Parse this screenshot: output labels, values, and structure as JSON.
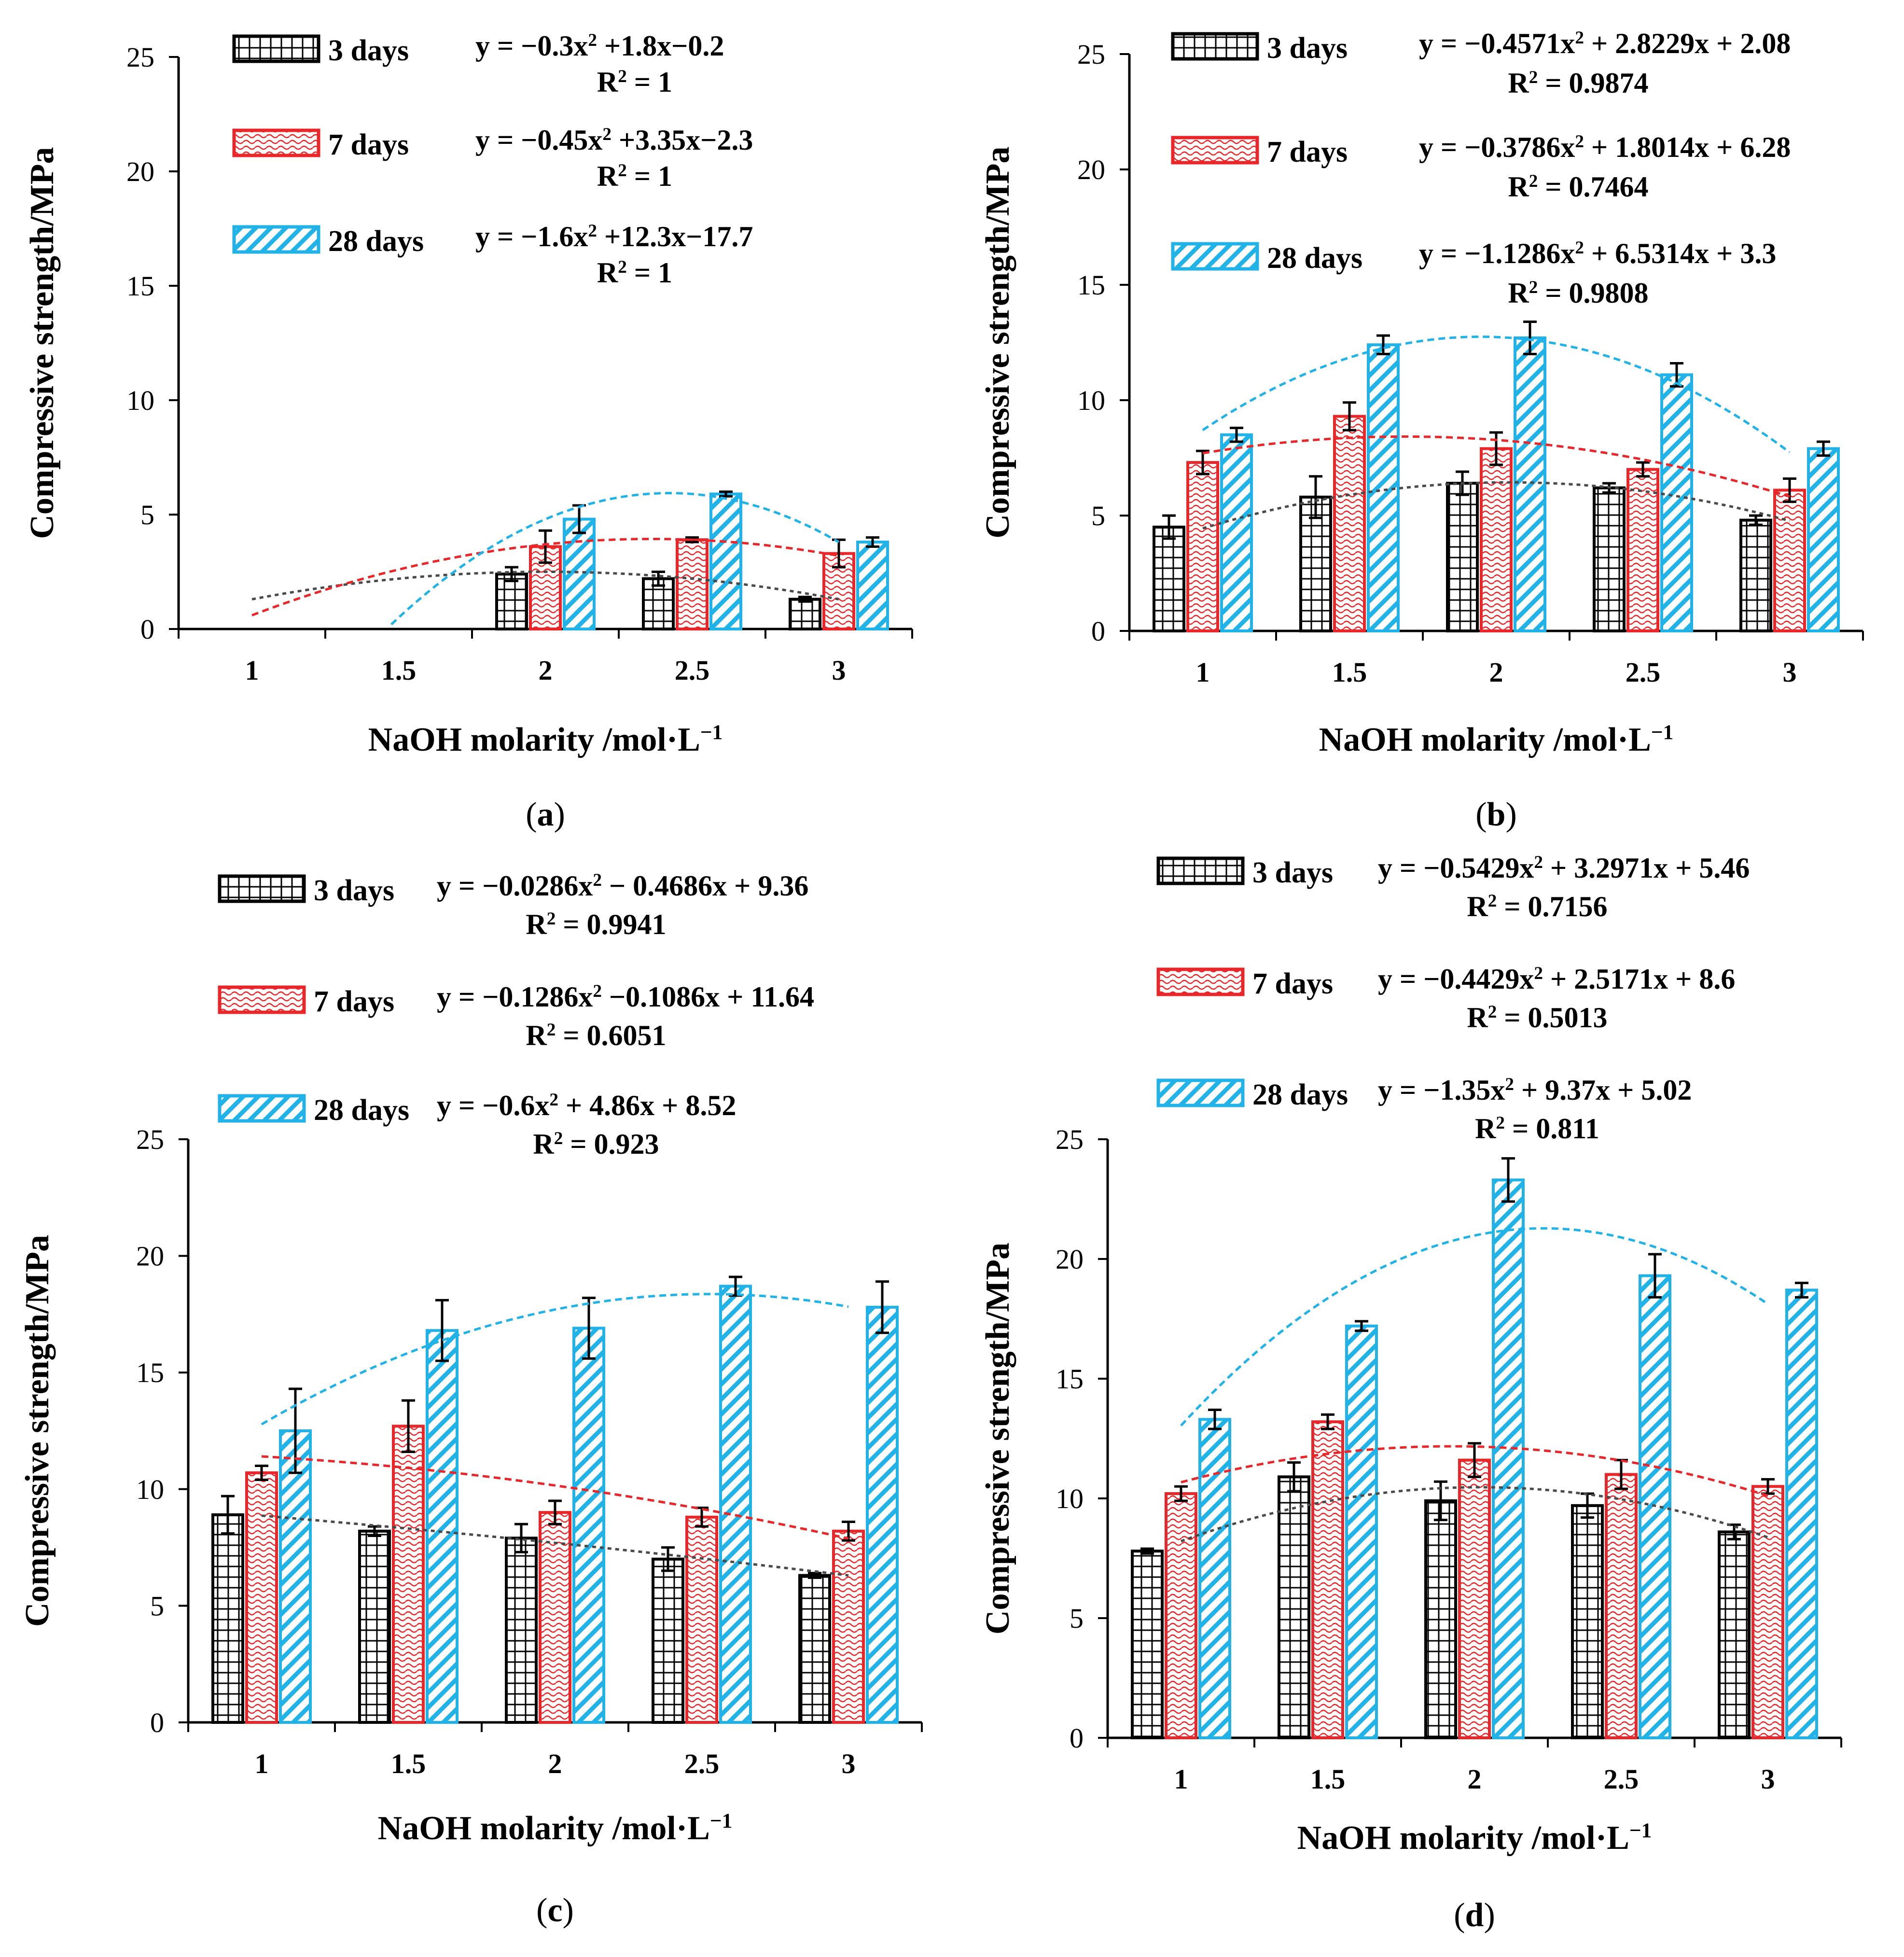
{
  "chart_data": [
    {
      "type": "bar",
      "panel_label": "(a)",
      "x_label": "NaOH molarity /mol·L⁻¹",
      "y_label": "Compressive strength/MPa",
      "ylim": [
        0,
        25
      ],
      "y_ticks": [
        "0",
        "5",
        "10",
        "15",
        "20",
        "25"
      ],
      "categories": [
        "1",
        "1.5",
        "2",
        "2.5",
        "3"
      ],
      "series": [
        {
          "name": "3 days",
          "color": "#000000",
          "pattern": "grid",
          "values": [
            null,
            null,
            2.4,
            2.2,
            1.3
          ],
          "errors": [
            0,
            0,
            0.3,
            0.3,
            0.1
          ],
          "equation": "y = −0.3x² +1.8x−0.2",
          "r2": "R² = 1",
          "fit": [
            -0.3,
            1.8,
            -0.2
          ]
        },
        {
          "name": "7 days",
          "color": "#e8272a",
          "pattern": "wave",
          "values": [
            null,
            null,
            3.6,
            3.9,
            3.3
          ],
          "errors": [
            0,
            0,
            0.7,
            0.1,
            0.6
          ],
          "equation": "y = −0.45x² +3.35x−2.3",
          "r2": "R² = 1",
          "fit": [
            -0.45,
            3.35,
            -2.3
          ]
        },
        {
          "name": "28 days",
          "color": "#21b2e8",
          "pattern": "diagonal",
          "values": [
            null,
            null,
            4.8,
            5.9,
            3.8
          ],
          "errors": [
            0,
            0,
            0.6,
            0.1,
            0.2
          ],
          "equation": "y = −1.6x² +12.3x−17.7",
          "r2": "R² = 1",
          "fit": [
            -1.6,
            12.3,
            -17.7
          ]
        }
      ]
    },
    {
      "type": "bar",
      "panel_label": "(b)",
      "x_label": "NaOH molarity /mol·L⁻¹",
      "y_label": "Compressive strength/MPa",
      "ylim": [
        0,
        25
      ],
      "y_ticks": [
        "0",
        "5",
        "10",
        "15",
        "20",
        "25"
      ],
      "categories": [
        "1",
        "1.5",
        "2",
        "2.5",
        "3"
      ],
      "series": [
        {
          "name": "3 days",
          "color": "#000000",
          "pattern": "grid",
          "values": [
            4.5,
            5.8,
            6.4,
            6.2,
            4.8
          ],
          "errors": [
            0.5,
            0.9,
            0.5,
            0.2,
            0.2
          ],
          "equation": "y = −0.4571x² + 2.8229x + 2.08",
          "r2": "R² = 0.9874",
          "fit": [
            -0.4571,
            2.8229,
            2.08
          ]
        },
        {
          "name": "7 days",
          "color": "#e8272a",
          "pattern": "wave",
          "values": [
            7.3,
            9.3,
            7.9,
            7.0,
            6.1
          ],
          "errors": [
            0.5,
            0.6,
            0.7,
            0.3,
            0.5
          ],
          "equation": "y = −0.3786x² + 1.8014x + 6.28",
          "r2": "R² = 0.7464",
          "fit": [
            -0.3786,
            1.8014,
            6.28
          ]
        },
        {
          "name": "28 days",
          "color": "#21b2e8",
          "pattern": "diagonal",
          "values": [
            8.5,
            12.4,
            12.7,
            11.1,
            7.9
          ],
          "errors": [
            0.3,
            0.4,
            0.7,
            0.5,
            0.3
          ],
          "equation": "y = −1.1286x² + 6.5314x + 3.3",
          "r2": "R² = 0.9808",
          "fit": [
            -1.1286,
            6.5314,
            3.3
          ]
        }
      ]
    },
    {
      "type": "bar",
      "panel_label": "(c)",
      "x_label": "NaOH  molarity /mol·L⁻¹",
      "y_label": "Compressive strength/MPa",
      "ylim": [
        0,
        25
      ],
      "y_ticks": [
        "0",
        "5",
        "10",
        "15",
        "20",
        "25"
      ],
      "categories": [
        "1",
        "1.5",
        "2",
        "2.5",
        "3"
      ],
      "series": [
        {
          "name": "3 days",
          "color": "#000000",
          "pattern": "grid",
          "values": [
            8.9,
            8.2,
            7.9,
            7.0,
            6.3
          ],
          "errors": [
            0.8,
            0.2,
            0.6,
            0.5,
            0.1
          ],
          "equation": "y = −0.0286x² − 0.4686x + 9.36",
          "r2": "R² = 0.9941",
          "fit": [
            -0.0286,
            -0.4686,
            9.36
          ]
        },
        {
          "name": "7 days",
          "color": "#e8272a",
          "pattern": "wave",
          "values": [
            10.7,
            12.7,
            9.0,
            8.8,
            8.2
          ],
          "errors": [
            0.3,
            1.1,
            0.5,
            0.4,
            0.4
          ],
          "equation": "y = −0.1286x² −0.1086x + 11.64",
          "r2": "R² = 0.6051",
          "fit": [
            -0.1286,
            -0.1086,
            11.64
          ]
        },
        {
          "name": "28 days",
          "color": "#21b2e8",
          "pattern": "diagonal",
          "values": [
            12.5,
            16.8,
            16.9,
            18.7,
            17.8
          ],
          "errors": [
            1.8,
            1.3,
            1.3,
            0.4,
            1.1
          ],
          "equation": "y = −0.6x² + 4.86x + 8.52",
          "r2": "R² = 0.923",
          "fit": [
            -0.6,
            4.86,
            8.52
          ]
        }
      ]
    },
    {
      "type": "bar",
      "panel_label": "(d)",
      "x_label": "NaOH  molarity /mol·L⁻¹",
      "y_label": "Compressive strength/MPa",
      "ylim": [
        0,
        25
      ],
      "y_ticks": [
        "0",
        "5",
        "10",
        "15",
        "20",
        "25"
      ],
      "categories": [
        "1",
        "1.5",
        "2",
        "2.5",
        "3"
      ],
      "series": [
        {
          "name": "3 days",
          "color": "#000000",
          "pattern": "grid",
          "values": [
            7.8,
            10.9,
            9.9,
            9.7,
            8.6
          ],
          "errors": [
            0.1,
            0.6,
            0.8,
            0.5,
            0.3
          ],
          "equation": "y = −0.5429x² + 3.2971x + 5.46",
          "r2": "R² = 0.7156",
          "fit": [
            -0.5429,
            3.2971,
            5.46
          ]
        },
        {
          "name": "7 days",
          "color": "#e8272a",
          "pattern": "wave",
          "values": [
            10.2,
            13.2,
            11.6,
            11.0,
            10.5
          ],
          "errors": [
            0.3,
            0.3,
            0.7,
            0.6,
            0.3
          ],
          "equation": "y = −0.4429x² + 2.5171x + 8.6",
          "r2": "R² = 0.5013",
          "fit": [
            -0.4429,
            2.5171,
            8.6
          ]
        },
        {
          "name": "28 days",
          "color": "#21b2e8",
          "pattern": "diagonal",
          "values": [
            13.3,
            17.2,
            23.3,
            19.3,
            18.7
          ],
          "errors": [
            0.4,
            0.2,
            0.9,
            0.9,
            0.3
          ],
          "equation": "y = −1.35x² + 9.37x + 5.02",
          "r2": "R² = 0.811",
          "fit": [
            -1.35,
            9.37,
            5.02
          ]
        }
      ]
    }
  ]
}
